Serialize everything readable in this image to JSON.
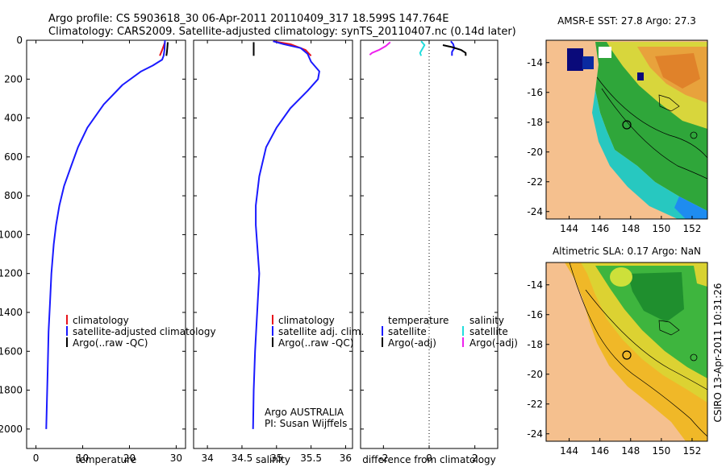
{
  "header": {
    "line1": "Argo profile: CS 5903618_30 06-Apr-2011 20110409_317 18.599S 147.764E",
    "line2": "Climatology: CARS2009. Satellite-adjusted climatology: synTS_20110407.nc (0.14d later)"
  },
  "credit": "CSIRO 13-Apr-2011 10:31:26",
  "colors": {
    "climatology": "#e8141c",
    "satellite_blue": "#1a1aff",
    "argo": "#000000",
    "satellite_cyan": "#22dddd",
    "argo_magenta": "#ee22ee",
    "land": "#f5c08e"
  },
  "chart_data": [
    {
      "type": "line",
      "name": "temperature-profile",
      "xlabel": "temperature",
      "ylabel": "",
      "xlim": [
        -2,
        32
      ],
      "ylim": [
        2100,
        0
      ],
      "xticks": [
        0,
        10,
        20,
        30
      ],
      "yticks": [
        0,
        200,
        400,
        600,
        800,
        1000,
        1200,
        1400,
        1600,
        1800,
        2000
      ],
      "legend": [
        "climatology",
        "satellite-adjusted climatology",
        "Argo(..raw -QC)"
      ],
      "series": [
        {
          "name": "climatology",
          "color": "climatology",
          "x": [
            26.5,
            27.0,
            27.3,
            27.6
          ],
          "y": [
            80,
            50,
            30,
            10
          ]
        },
        {
          "name": "satellite-adjusted climatology",
          "color": "satellite_blue",
          "x": [
            27.6,
            27.5,
            27.3,
            27.0,
            25.0,
            22.5,
            18.5,
            14.5,
            11.0,
            9.0,
            7.5,
            6.0,
            5.0,
            4.3,
            3.8,
            3.3,
            3.0,
            2.7,
            2.5,
            2.3,
            2.2
          ],
          "y": [
            0,
            50,
            80,
            100,
            130,
            160,
            230,
            330,
            450,
            550,
            650,
            750,
            850,
            950,
            1050,
            1200,
            1350,
            1500,
            1700,
            1900,
            2000
          ]
        },
        {
          "name": "Argo(..raw -QC)",
          "color": "argo",
          "x": [
            28.2,
            28.1,
            28.0,
            27.9
          ],
          "y": [
            10,
            40,
            65,
            80
          ]
        }
      ]
    },
    {
      "type": "line",
      "name": "salinity-profile",
      "xlabel": "salinity",
      "xlim": [
        33.8,
        36.1
      ],
      "ylim": [
        2100,
        0
      ],
      "xticks": [
        34,
        34.5,
        35,
        35.5,
        36
      ],
      "legend": [
        "climatology",
        "satellite adj. clim.",
        "Argo(..raw -QC)"
      ],
      "annotation": [
        "Argo AUSTRALIA",
        "PI: Susan Wijffels"
      ],
      "series": [
        {
          "name": "climatology",
          "color": "climatology",
          "x": [
            34.95,
            35.2,
            35.42,
            35.5
          ],
          "y": [
            5,
            20,
            50,
            80
          ]
        },
        {
          "name": "satellite adj. clim.",
          "color": "satellite_blue",
          "x": [
            34.95,
            35.1,
            35.35,
            35.45,
            35.5,
            35.62,
            35.6,
            35.45,
            35.2,
            35.0,
            34.85,
            34.75,
            34.7,
            34.7,
            34.72,
            34.75,
            34.72,
            34.69,
            34.67,
            34.66
          ],
          "y": [
            5,
            20,
            40,
            70,
            110,
            160,
            200,
            260,
            350,
            450,
            550,
            700,
            850,
            950,
            1050,
            1200,
            1400,
            1600,
            1800,
            2000
          ]
        },
        {
          "name": "Argo(..raw -QC)",
          "color": "argo",
          "x": [
            34.67,
            34.67,
            34.67
          ],
          "y": [
            10,
            40,
            80
          ]
        }
      ]
    },
    {
      "type": "line",
      "name": "difference-profile",
      "xlabel": "difference from climatology",
      "xlim": [
        -3,
        3
      ],
      "ylim": [
        2100,
        0
      ],
      "xticks": [
        -2,
        0,
        2
      ],
      "legend_left": {
        "title": "temperature",
        "items": [
          "satellite",
          "Argo(-adj)"
        ]
      },
      "legend_right": {
        "title": "salinity",
        "items": [
          "satellite",
          "Argo(-adj)"
        ]
      },
      "series": [
        {
          "name": "temperature satellite",
          "color": "satellite_blue",
          "x": [
            0.95,
            1.05,
            1.1,
            1.0,
            1.0
          ],
          "y": [
            5,
            20,
            40,
            60,
            80
          ]
        },
        {
          "name": "temperature Argo(-adj)",
          "color": "argo",
          "x": [
            0.6,
            1.0,
            1.4,
            1.6,
            1.6
          ],
          "y": [
            25,
            35,
            50,
            65,
            80
          ]
        },
        {
          "name": "salinity satellite",
          "color": "satellite_cyan",
          "x": [
            -0.35,
            -0.2,
            -0.3,
            -0.4,
            -0.35
          ],
          "y": [
            5,
            25,
            45,
            65,
            80
          ]
        },
        {
          "name": "salinity Argo(-adj)",
          "color": "argo_magenta",
          "x": [
            -1.7,
            -1.9,
            -2.2,
            -2.5,
            -2.6
          ],
          "y": [
            10,
            30,
            50,
            65,
            75
          ]
        }
      ]
    },
    {
      "type": "heatmap",
      "name": "sst-map",
      "title": "AMSR-E SST: 27.8 Argo: 27.3",
      "xlim": [
        142.5,
        153
      ],
      "ylim": [
        -24.5,
        -12.5
      ],
      "xticks": [
        144,
        146,
        148,
        150,
        152
      ],
      "yticks": [
        -14,
        -16,
        -18,
        -20,
        -22,
        -24
      ],
      "profile_location": [
        147.764,
        -18.599
      ]
    },
    {
      "type": "heatmap",
      "name": "sla-map",
      "title": "Altimetric SLA: 0.17 Argo: NaN",
      "xlim": [
        142.5,
        153
      ],
      "ylim": [
        -24.5,
        -12.5
      ],
      "xticks": [
        144,
        146,
        148,
        150,
        152
      ],
      "yticks": [
        -14,
        -16,
        -18,
        -20,
        -22,
        -24
      ],
      "profile_location": [
        147.764,
        -18.599
      ]
    }
  ]
}
